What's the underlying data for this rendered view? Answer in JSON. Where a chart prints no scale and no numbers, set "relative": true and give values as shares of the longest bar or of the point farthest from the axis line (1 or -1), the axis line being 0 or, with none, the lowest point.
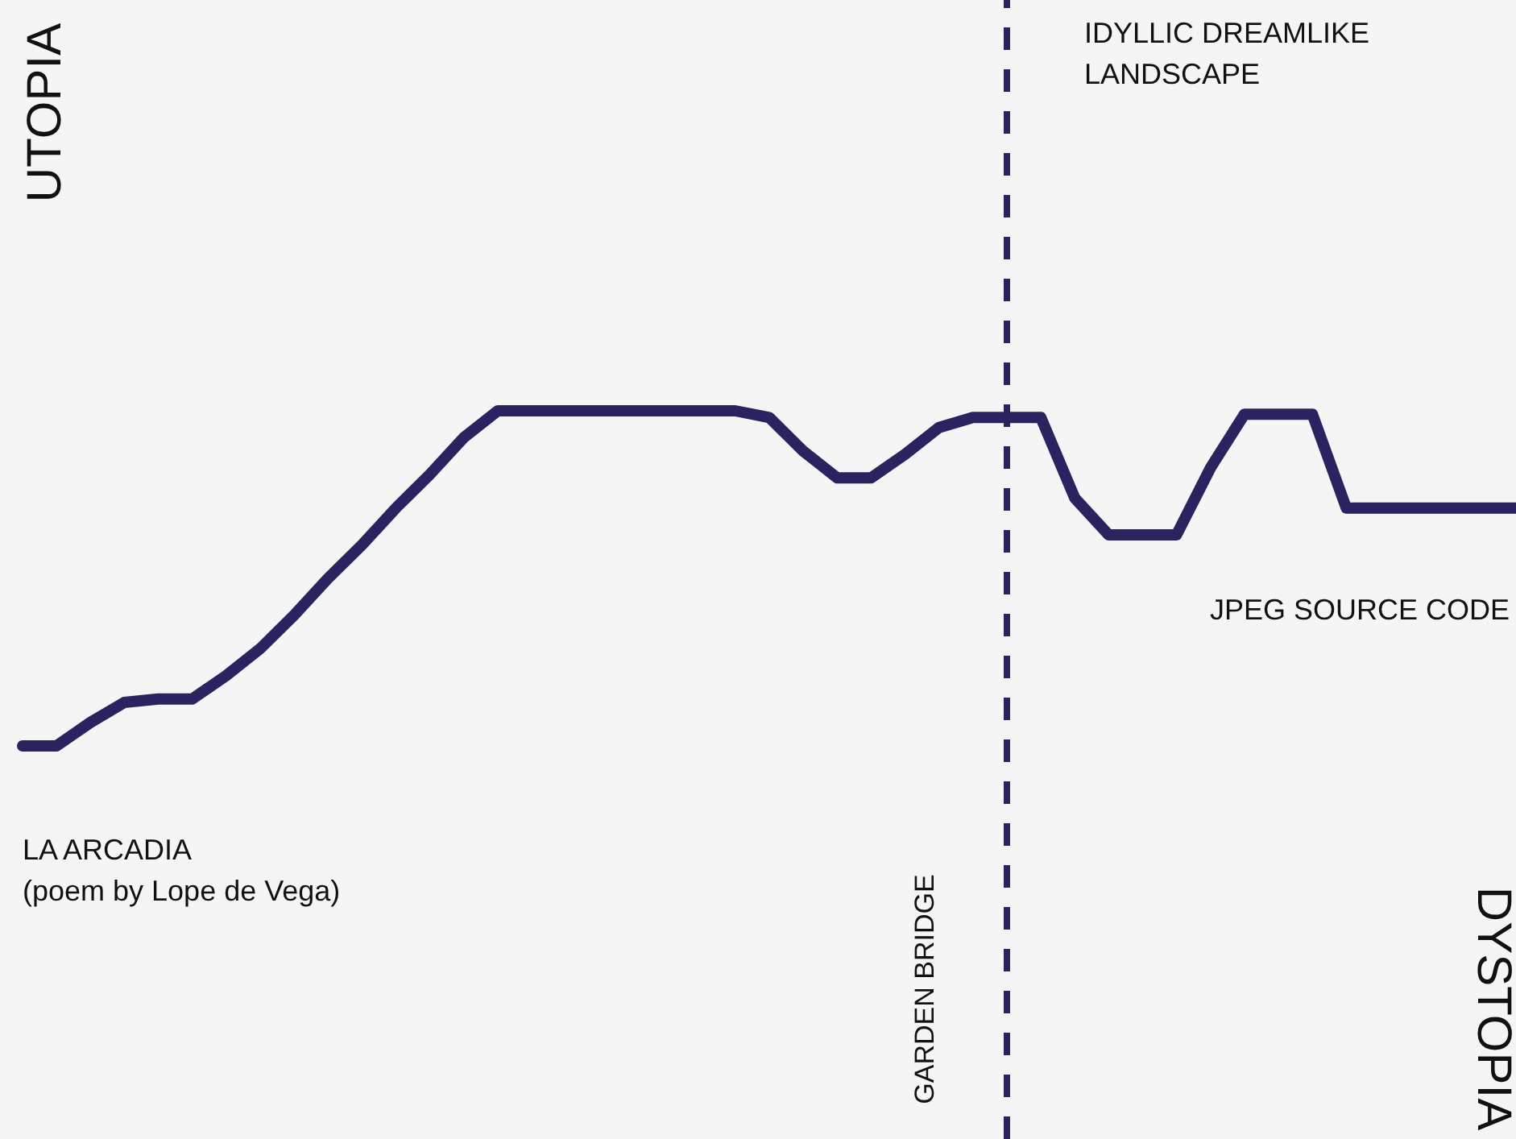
{
  "chart_data": {
    "type": "line",
    "relative": true,
    "color": "#29245f",
    "line_style": "solid",
    "marker": "none",
    "grid": false,
    "tick_labels": false,
    "categories": [
      null,
      null,
      null,
      null,
      null,
      null,
      null,
      null,
      null,
      null,
      null,
      null,
      null,
      null,
      null,
      null,
      null,
      null,
      null,
      null,
      null,
      null,
      null,
      null,
      null,
      null,
      null,
      null,
      null,
      null,
      null,
      null,
      null,
      null,
      null,
      null,
      null,
      null,
      null,
      null,
      null,
      null,
      null,
      null,
      null
    ],
    "values": [
      0,
      0,
      0.07,
      0.13,
      0.14,
      0.14,
      0.21,
      0.29,
      0.39,
      0.5,
      0.6,
      0.71,
      0.81,
      0.92,
      1,
      1,
      1,
      1,
      1,
      1,
      1,
      1,
      0.98,
      0.88,
      0.8,
      0.8,
      0.87,
      0.95,
      0.98,
      0.98,
      0.98,
      0.74,
      0.63,
      0.63,
      0.63,
      0.83,
      0.99,
      0.99,
      0.99,
      0.71,
      0.71,
      0.71,
      0.71,
      0.71,
      0.71
    ],
    "annotations": [
      "UTOPIA",
      "DYSTOPIA",
      "LA ARCADIA\n(poem by Lope de Vega)",
      "IDYLLIC DREAMLIKE\nLANDSCAPE",
      "JPEG SOURCE CODE",
      "GARDEN BRIDGE"
    ]
  }
}
